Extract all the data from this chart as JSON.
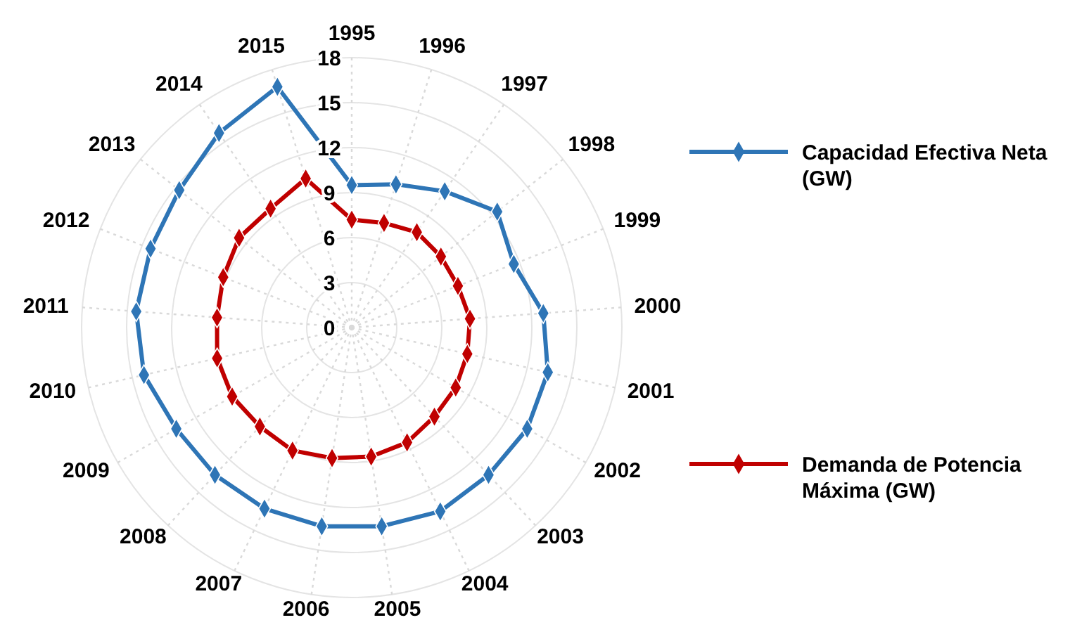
{
  "chart_data": {
    "type": "radar",
    "categories": [
      "1995",
      "1996",
      "1997",
      "1998",
      "1999",
      "2000",
      "2001",
      "2002",
      "2003",
      "2004",
      "2005",
      "2006",
      "2007",
      "2008",
      "2009",
      "2010",
      "2011",
      "2012",
      "2013",
      "2014",
      "2015"
    ],
    "series": [
      {
        "name": "Capacidad Efectiva Neta (GW)",
        "color": "#2e75b6",
        "values": [
          9.5,
          10.0,
          11.0,
          12.4,
          11.6,
          12.8,
          13.4,
          13.5,
          13.4,
          13.6,
          13.4,
          13.4,
          13.4,
          13.4,
          13.5,
          14.2,
          14.4,
          14.4,
          14.7,
          15.7,
          16.8
        ]
      },
      {
        "name": "Demanda de Potencia Máxima (GW)",
        "color": "#c00000",
        "values": [
          7.2,
          7.3,
          7.7,
          7.6,
          7.6,
          7.9,
          7.9,
          8.0,
          8.1,
          8.5,
          8.7,
          8.8,
          9.1,
          9.0,
          9.2,
          9.2,
          9.0,
          9.2,
          9.6,
          9.6,
          10.4
        ]
      }
    ],
    "ylim": [
      0,
      18
    ],
    "yticks": [
      0,
      3,
      6,
      9,
      12,
      15,
      18
    ],
    "grid": true,
    "legend": "right",
    "marker": "diamond",
    "line_style": "solid"
  }
}
